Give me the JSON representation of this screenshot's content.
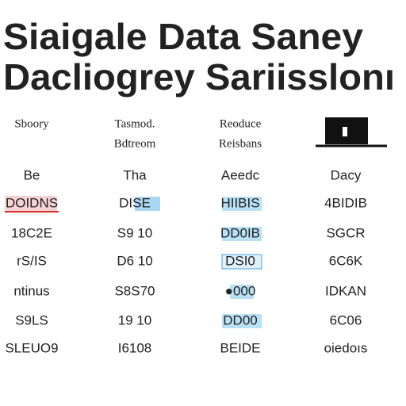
{
  "title": {
    "lines": [
      "Siaigale Data Saney",
      "Dacliogrey Sariisslonı"
    ]
  },
  "table": {
    "headers": [
      [
        "Sboory"
      ],
      [
        "Tasmod.",
        "Bdtreom"
      ],
      [
        "Reoduce",
        "Reisbans"
      ]
    ],
    "subheaders": [
      "Be",
      "Tha",
      "Aeedc",
      "Dacy"
    ],
    "rows": [
      [
        "DOIDNS",
        "DISE",
        "HIIBIS",
        "4BIDIB"
      ],
      [
        "18C2E",
        "S9 10",
        "DD0IB",
        "SGCR"
      ],
      [
        "rS/IS",
        "D6 10",
        "DSI0",
        "6C6K"
      ],
      [
        "ntinus",
        "S8S70",
        "●000",
        "IDKAN"
      ],
      [
        "S9LS",
        "19 10",
        "DD00",
        "6C06"
      ],
      [
        "SLEUO9",
        "I6108",
        "BEIDE",
        "oiedoıs"
      ]
    ]
  }
}
